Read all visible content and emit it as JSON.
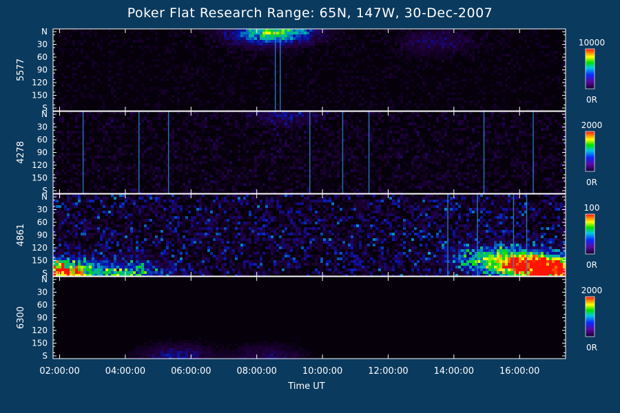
{
  "chart_data": {
    "type": "heatmap",
    "title": "Poker Flat Research Range: 65N, 147W, 30-Dec-2007",
    "xlabel": "Time UT",
    "x_ticks": [
      "02:00:00",
      "04:00:00",
      "06:00:00",
      "08:00:00",
      "10:00:00",
      "12:00:00",
      "14:00:00",
      "16:00:00"
    ],
    "x_range_hours": [
      1.8,
      17.4
    ],
    "y_ticks": [
      "N",
      "30",
      "60",
      "90",
      "120",
      "150",
      "S"
    ],
    "panels": [
      {
        "name": "5577",
        "colorbar_max": "10000",
        "colorbar_min": "0R",
        "bright_streaks_hours": [
          8.55,
          8.7
        ],
        "base_level": 0.06,
        "hotspots": [
          {
            "t": 8.7,
            "angle": 0,
            "intensity": 0.55
          },
          {
            "t": 8.0,
            "angle": 5,
            "intensity": 0.3
          },
          {
            "t": 13.4,
            "angle": 25,
            "intensity": 0.18
          }
        ]
      },
      {
        "name": "4278",
        "colorbar_max": "2000",
        "colorbar_min": "0R",
        "bright_streaks_hours": [
          2.7,
          4.4,
          5.3,
          9.6,
          10.6,
          11.4,
          14.9,
          16.4
        ],
        "base_level": 0.1,
        "hotspots": [
          {
            "t": 8.8,
            "angle": 0,
            "intensity": 0.2
          }
        ]
      },
      {
        "name": "4861",
        "colorbar_max": "100",
        "colorbar_min": "0R",
        "bright_streaks_hours": [
          13.8,
          14.7,
          15.8,
          16.2
        ],
        "base_level": 0.22,
        "hotspots": [
          {
            "t": 1.95,
            "angle": 170,
            "intensity": 1.0
          },
          {
            "t": 17.0,
            "angle": 165,
            "intensity": 1.0
          },
          {
            "t": 16.1,
            "angle": 150,
            "intensity": 0.7
          },
          {
            "t": 15.0,
            "angle": 140,
            "intensity": 0.45
          },
          {
            "t": 4.0,
            "angle": 175,
            "intensity": 0.5
          }
        ]
      },
      {
        "name": "6300",
        "colorbar_max": "2000",
        "colorbar_min": "0R",
        "bright_streaks_hours": [],
        "base_level": 0.02,
        "hotspots": [
          {
            "t": 5.5,
            "angle": 175,
            "intensity": 0.3
          },
          {
            "t": 8.3,
            "angle": 175,
            "intensity": 0.22
          }
        ]
      }
    ]
  }
}
